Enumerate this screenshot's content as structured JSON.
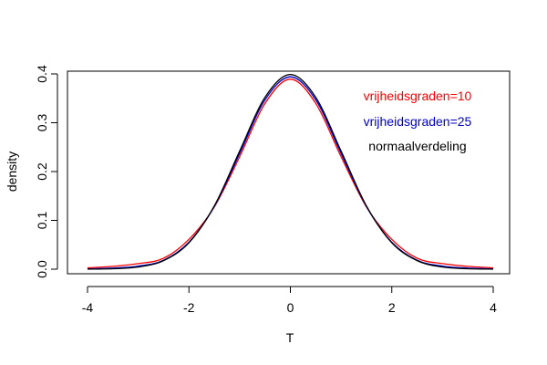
{
  "chart_data": {
    "type": "line",
    "xlabel": "T",
    "ylabel": "density",
    "xlim": [
      -4,
      4
    ],
    "ylim": [
      0,
      0.4
    ],
    "x_ticks": [
      -4,
      -2,
      0,
      2,
      4
    ],
    "y_ticks": [
      0.0,
      0.1,
      0.2,
      0.3,
      0.4
    ],
    "x_tick_labels": [
      "-4",
      "-2",
      "0",
      "2",
      "4"
    ],
    "y_tick_labels": [
      "0.0",
      "0.1",
      "0.2",
      "0.3",
      "0.4"
    ],
    "grid": false,
    "legend_placement": "top-right",
    "x": [
      -4.0,
      -3.5,
      -3.0,
      -2.5,
      -2.0,
      -1.5,
      -1.0,
      -0.5,
      0.0,
      0.5,
      1.0,
      1.5,
      2.0,
      2.5,
      3.0,
      3.5,
      4.0
    ],
    "series": [
      {
        "name": "vrijheidsgraden=10",
        "color": "#ff0000",
        "values": [
          0.0028,
          0.0058,
          0.0114,
          0.0224,
          0.0611,
          0.1274,
          0.2304,
          0.3397,
          0.3891,
          0.3397,
          0.2304,
          0.1274,
          0.0611,
          0.0224,
          0.0114,
          0.0058,
          0.0028
        ]
      },
      {
        "name": "vrijheidsgraden=25",
        "color": "#0000cc",
        "values": [
          0.0007,
          0.0022,
          0.0063,
          0.0184,
          0.0553,
          0.1285,
          0.237,
          0.3469,
          0.394,
          0.3469,
          0.237,
          0.1285,
          0.0553,
          0.0184,
          0.0063,
          0.0022,
          0.0007
        ]
      },
      {
        "name": "normaalverdeling",
        "color": "#000000",
        "values": [
          0.0001,
          0.0009,
          0.0044,
          0.0175,
          0.054,
          0.1295,
          0.242,
          0.3521,
          0.3989,
          0.3521,
          0.242,
          0.1295,
          0.054,
          0.0175,
          0.0044,
          0.0009,
          0.0001
        ]
      }
    ]
  }
}
